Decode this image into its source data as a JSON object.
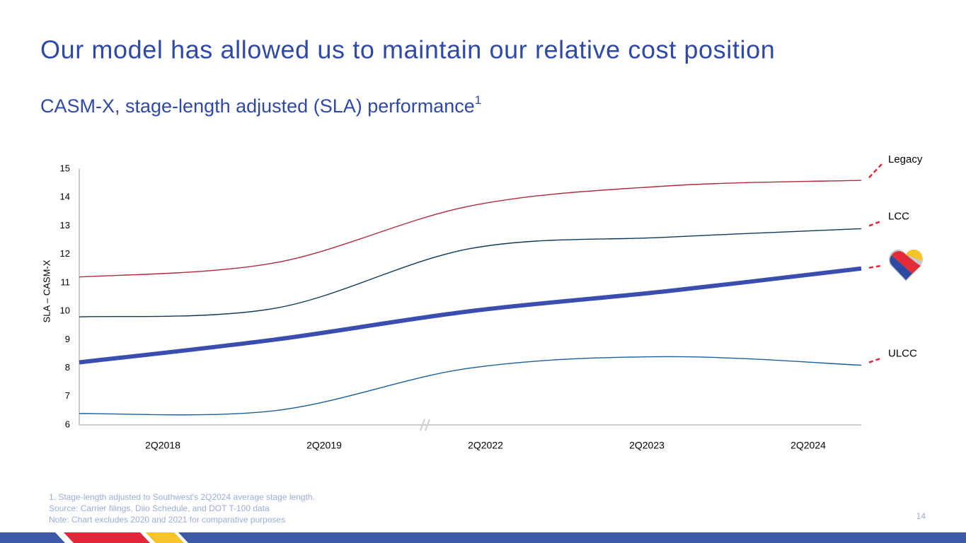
{
  "title": "Our model has allowed us to maintain our relative cost position",
  "subtitle": "CASM-X, stage-length adjusted (SLA) performance",
  "subtitle_footnote_mark": "1",
  "chart_data": {
    "type": "line",
    "categories": [
      "2Q2018",
      "2Q2019",
      "2Q2022",
      "2Q2023",
      "2Q2024"
    ],
    "y_label": "SLA – CASM-X",
    "ylim": [
      6,
      15
    ],
    "yticks": [
      6,
      7,
      8,
      9,
      10,
      11,
      12,
      13,
      14,
      15
    ],
    "series": [
      {
        "name": "Legacy",
        "color": "#b02a3c",
        "values": [
          11.2,
          11.7,
          13.7,
          14.4,
          14.6
        ]
      },
      {
        "name": "LCC",
        "color": "#0e3a5a",
        "values": [
          9.8,
          10.1,
          12.2,
          12.6,
          12.9
        ]
      },
      {
        "color": "#3a4eb0",
        "values": [
          8.2,
          9.0,
          10.0,
          10.7,
          11.5
        ]
      },
      {
        "name": "ULCC",
        "color": "#1b5f9c",
        "values": [
          6.4,
          6.5,
          8.0,
          8.4,
          8.1
        ]
      }
    ]
  },
  "footnotes": [
    "1. Stage-length adjusted to Southwest's 2Q2024 average stage length.",
    "Source: Carrier filings, Diio Schedule, and DOT T-100 data",
    "Note: Chart excludes 2020 and 2021 for comparative purposes"
  ],
  "page_number": "14"
}
